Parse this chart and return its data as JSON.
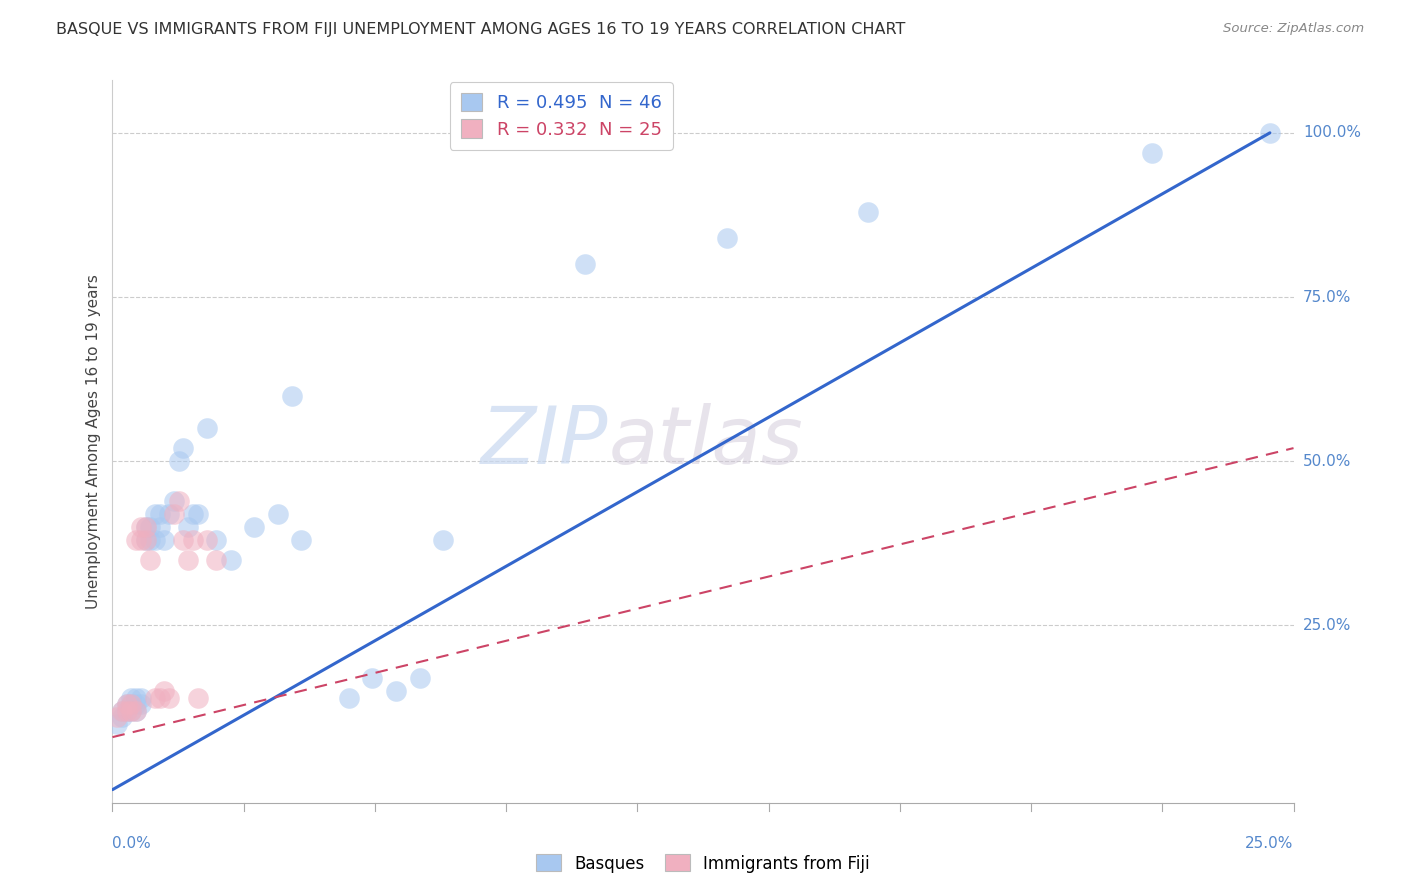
{
  "title": "BASQUE VS IMMIGRANTS FROM FIJI UNEMPLOYMENT AMONG AGES 16 TO 19 YEARS CORRELATION CHART",
  "source": "Source: ZipAtlas.com",
  "ylabel": "Unemployment Among Ages 16 to 19 years",
  "legend1_label": "R = 0.495  N = 46",
  "legend2_label": "R = 0.332  N = 25",
  "basque_color": "#a8c8f0",
  "fiji_color": "#f0b0c0",
  "line_basque_color": "#3366cc",
  "line_fiji_color": "#cc4466",
  "watermark_zip": "ZIP",
  "watermark_atlas": "atlas",
  "xlim": [
    0.0,
    0.25
  ],
  "ylim": [
    -0.02,
    1.08
  ],
  "right_yticks": [
    0.25,
    0.5,
    0.75,
    1.0
  ],
  "right_yticklabels": [
    "25.0%",
    "50.0%",
    "75.0%",
    "100.0%"
  ],
  "grid_yticks": [
    0.25,
    0.5,
    0.75,
    1.0
  ],
  "basque_x": [
    0.001,
    0.002,
    0.002,
    0.003,
    0.003,
    0.004,
    0.004,
    0.004,
    0.005,
    0.005,
    0.005,
    0.006,
    0.006,
    0.007,
    0.007,
    0.008,
    0.008,
    0.009,
    0.009,
    0.01,
    0.01,
    0.011,
    0.012,
    0.013,
    0.014,
    0.015,
    0.016,
    0.017,
    0.018,
    0.02,
    0.022,
    0.025,
    0.03,
    0.035,
    0.038,
    0.04,
    0.05,
    0.055,
    0.06,
    0.065,
    0.07,
    0.1,
    0.13,
    0.16,
    0.22,
    0.245
  ],
  "basque_y": [
    0.1,
    0.11,
    0.12,
    0.12,
    0.13,
    0.12,
    0.13,
    0.14,
    0.12,
    0.13,
    0.14,
    0.13,
    0.14,
    0.38,
    0.4,
    0.38,
    0.4,
    0.38,
    0.42,
    0.4,
    0.42,
    0.38,
    0.42,
    0.44,
    0.5,
    0.52,
    0.4,
    0.42,
    0.42,
    0.55,
    0.38,
    0.35,
    0.4,
    0.42,
    0.6,
    0.38,
    0.14,
    0.17,
    0.15,
    0.17,
    0.38,
    0.8,
    0.84,
    0.88,
    0.97,
    1.0
  ],
  "fiji_x": [
    0.001,
    0.002,
    0.003,
    0.003,
    0.004,
    0.004,
    0.005,
    0.005,
    0.006,
    0.006,
    0.007,
    0.007,
    0.008,
    0.009,
    0.01,
    0.011,
    0.012,
    0.013,
    0.014,
    0.015,
    0.016,
    0.017,
    0.018,
    0.02,
    0.022
  ],
  "fiji_y": [
    0.11,
    0.12,
    0.12,
    0.13,
    0.12,
    0.13,
    0.12,
    0.38,
    0.38,
    0.4,
    0.38,
    0.4,
    0.35,
    0.14,
    0.14,
    0.15,
    0.14,
    0.42,
    0.44,
    0.38,
    0.35,
    0.38,
    0.14,
    0.38,
    0.35
  ],
  "blue_line_x": [
    0.0,
    0.245
  ],
  "blue_line_y": [
    0.0,
    1.0
  ],
  "pink_line_x": [
    0.0,
    0.25
  ],
  "pink_line_y": [
    0.08,
    0.52
  ]
}
